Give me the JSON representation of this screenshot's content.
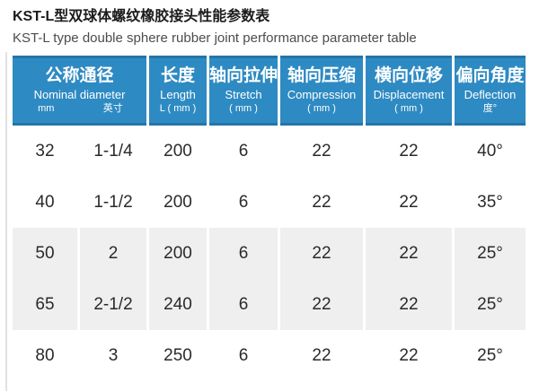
{
  "page": {
    "title_zh": "KST-L型双球体螺纹橡胶接头性能参数表",
    "title_en": "KST-L type double sphere rubber joint performance parameter table"
  },
  "colors": {
    "header_bg": "#2e8ac2",
    "header_border": "#2375a8",
    "shaded_row_bg": "#efefef",
    "title_color": "#1b1b1b",
    "subtitle_color": "#4c4c4c"
  },
  "table": {
    "group_header": {
      "zh": "公称通径",
      "en": "Nominal diameter",
      "sub_units": [
        "mm",
        "英寸"
      ]
    },
    "columns": [
      {
        "zh": "长度",
        "en": "Length",
        "unit": "L ( mm )"
      },
      {
        "zh": "轴向拉伸",
        "en": "Stretch",
        "unit": "( mm )"
      },
      {
        "zh": "轴向压缩",
        "en": "Compression",
        "unit": "( mm )"
      },
      {
        "zh": "横向位移",
        "en": "Displacement",
        "unit": "( mm )"
      },
      {
        "zh": "偏向角度",
        "en": "Deflection",
        "unit": "度°"
      }
    ],
    "rows": [
      {
        "shaded": false,
        "cells": [
          "32",
          "1-1/4",
          "200",
          "6",
          "22",
          "22",
          "40°"
        ]
      },
      {
        "shaded": false,
        "cells": [
          "40",
          "1-1/2",
          "200",
          "6",
          "22",
          "22",
          "35°"
        ]
      },
      {
        "shaded": true,
        "cells": [
          "50",
          "2",
          "200",
          "6",
          "22",
          "22",
          "25°"
        ]
      },
      {
        "shaded": true,
        "cells": [
          "65",
          "2-1/2",
          "240",
          "6",
          "22",
          "22",
          "25°"
        ]
      },
      {
        "shaded": false,
        "cells": [
          "80",
          "3",
          "250",
          "6",
          "22",
          "22",
          "25°"
        ]
      }
    ]
  },
  "chart_data": {
    "type": "table",
    "title": "KST-L型双球体螺纹橡胶接头性能参数表",
    "subtitle": "KST-L type double sphere rubber joint performance parameter table",
    "columns": [
      "Nominal diameter mm (公称通径)",
      "Nominal diameter 英寸",
      "Length L (mm) (长度)",
      "Stretch (mm) (轴向拉伸)",
      "Compression (mm) (轴向压缩)",
      "Displacement (mm) (横向位移)",
      "Deflection 度° (偏向角度)"
    ],
    "rows": [
      [
        "32",
        "1-1/4",
        "200",
        "6",
        "22",
        "22",
        "40°"
      ],
      [
        "40",
        "1-1/2",
        "200",
        "6",
        "22",
        "22",
        "35°"
      ],
      [
        "50",
        "2",
        "200",
        "6",
        "22",
        "22",
        "25°"
      ],
      [
        "65",
        "2-1/2",
        "240",
        "6",
        "22",
        "22",
        "25°"
      ],
      [
        "80",
        "3",
        "250",
        "6",
        "22",
        "22",
        "25°"
      ]
    ]
  }
}
